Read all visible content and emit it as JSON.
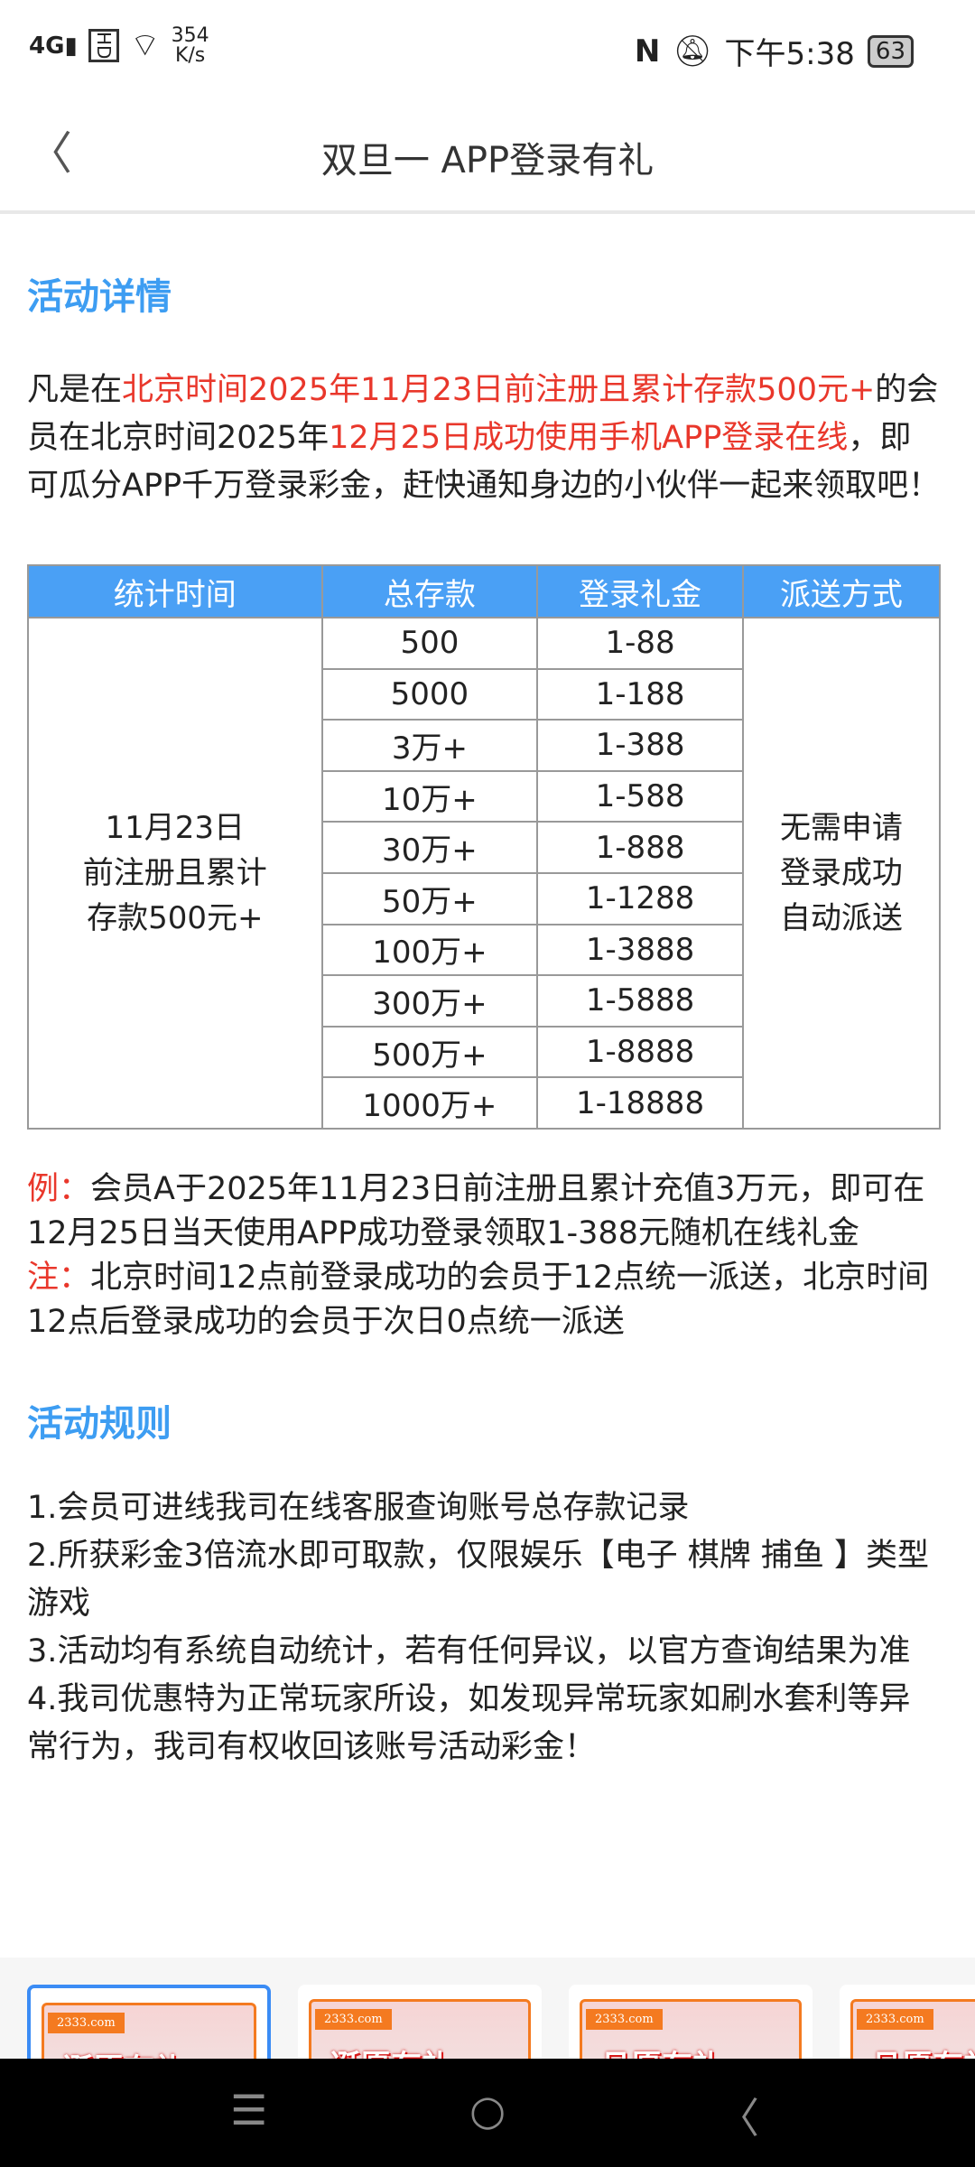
{
  "status": {
    "network": "4G",
    "hd": "HD",
    "speed": "354",
    "speed_unit": "K/s",
    "time": "下午5:38",
    "battery": "63"
  },
  "header": {
    "title": "双旦一 APP登录有礼"
  },
  "details": {
    "heading": "活动详情",
    "intro": [
      {
        "t": "凡是在",
        "red": false
      },
      {
        "t": "北京时间2025年11月23日前注册且累计存款500元+",
        "red": true
      },
      {
        "t": "的会员在北京时间2025年",
        "red": false
      },
      {
        "t": "12月25日成功使用手机APP登录在线",
        "red": true
      },
      {
        "t": "，即可瓜分APP千万登录彩金，赶快通知身边的小伙伴一起来领取吧！",
        "red": false
      }
    ]
  },
  "table": {
    "headers": [
      "统计时间",
      "总存款",
      "登录礼金",
      "派送方式"
    ],
    "period": [
      "11月23日",
      "前注册且累计",
      "存款500元+"
    ],
    "method": [
      "无需申请",
      "登录成功",
      "自动派送"
    ],
    "rows": [
      [
        "500",
        "1-88"
      ],
      [
        "5000",
        "1-188"
      ],
      [
        "3万+",
        "1-388"
      ],
      [
        "10万+",
        "1-588"
      ],
      [
        "30万+",
        "1-888"
      ],
      [
        "50万+",
        "1-1288"
      ],
      [
        "100万+",
        "1-3888"
      ],
      [
        "300万+",
        "1-5888"
      ],
      [
        "500万+",
        "1-8888"
      ],
      [
        "1000万+",
        "1-18888"
      ]
    ]
  },
  "notes": {
    "example_label": "例：",
    "example": "会员A于2025年11月23日前注册且累计充值3万元，即可在12月25日当天使用APP成功登录领取1-388元随机在线礼金",
    "note_label": "注：",
    "note": "北京时间12点前登录成功的会员于12点统一派送，北京时间12点后登录成功的会员于次日0点统一派送"
  },
  "rules": {
    "heading": "活动规则",
    "items": [
      "1.会员可进线我司在线客服查询账号总存款记录",
      "2.所获彩金3倍流水即可取款，仅限娱乐【电子 棋牌 捕鱼 】类型游戏",
      "3.活动均有系统自动统计，若有任何异议，以官方查询结果为准",
      "4.我司优惠特为正常玩家所设，如发现异常玩家如刷水套利等异常行为，我司有权收回该账号活动彩金！"
    ]
  },
  "thumbnails": [
    {
      "site": "2333.com",
      "title": "诞愿有礼",
      "selected": true
    },
    {
      "site": "2333.com",
      "title": "诞愿有礼",
      "selected": false
    },
    {
      "site": "2333.com",
      "title": "旦愿有礼",
      "selected": false
    },
    {
      "site": "2333.com",
      "title": "旦愿有礼",
      "selected": false
    }
  ],
  "colors": {
    "accent": "#3d9df2",
    "highlight": "#e9372b",
    "table_header": "#4aa0f5"
  }
}
